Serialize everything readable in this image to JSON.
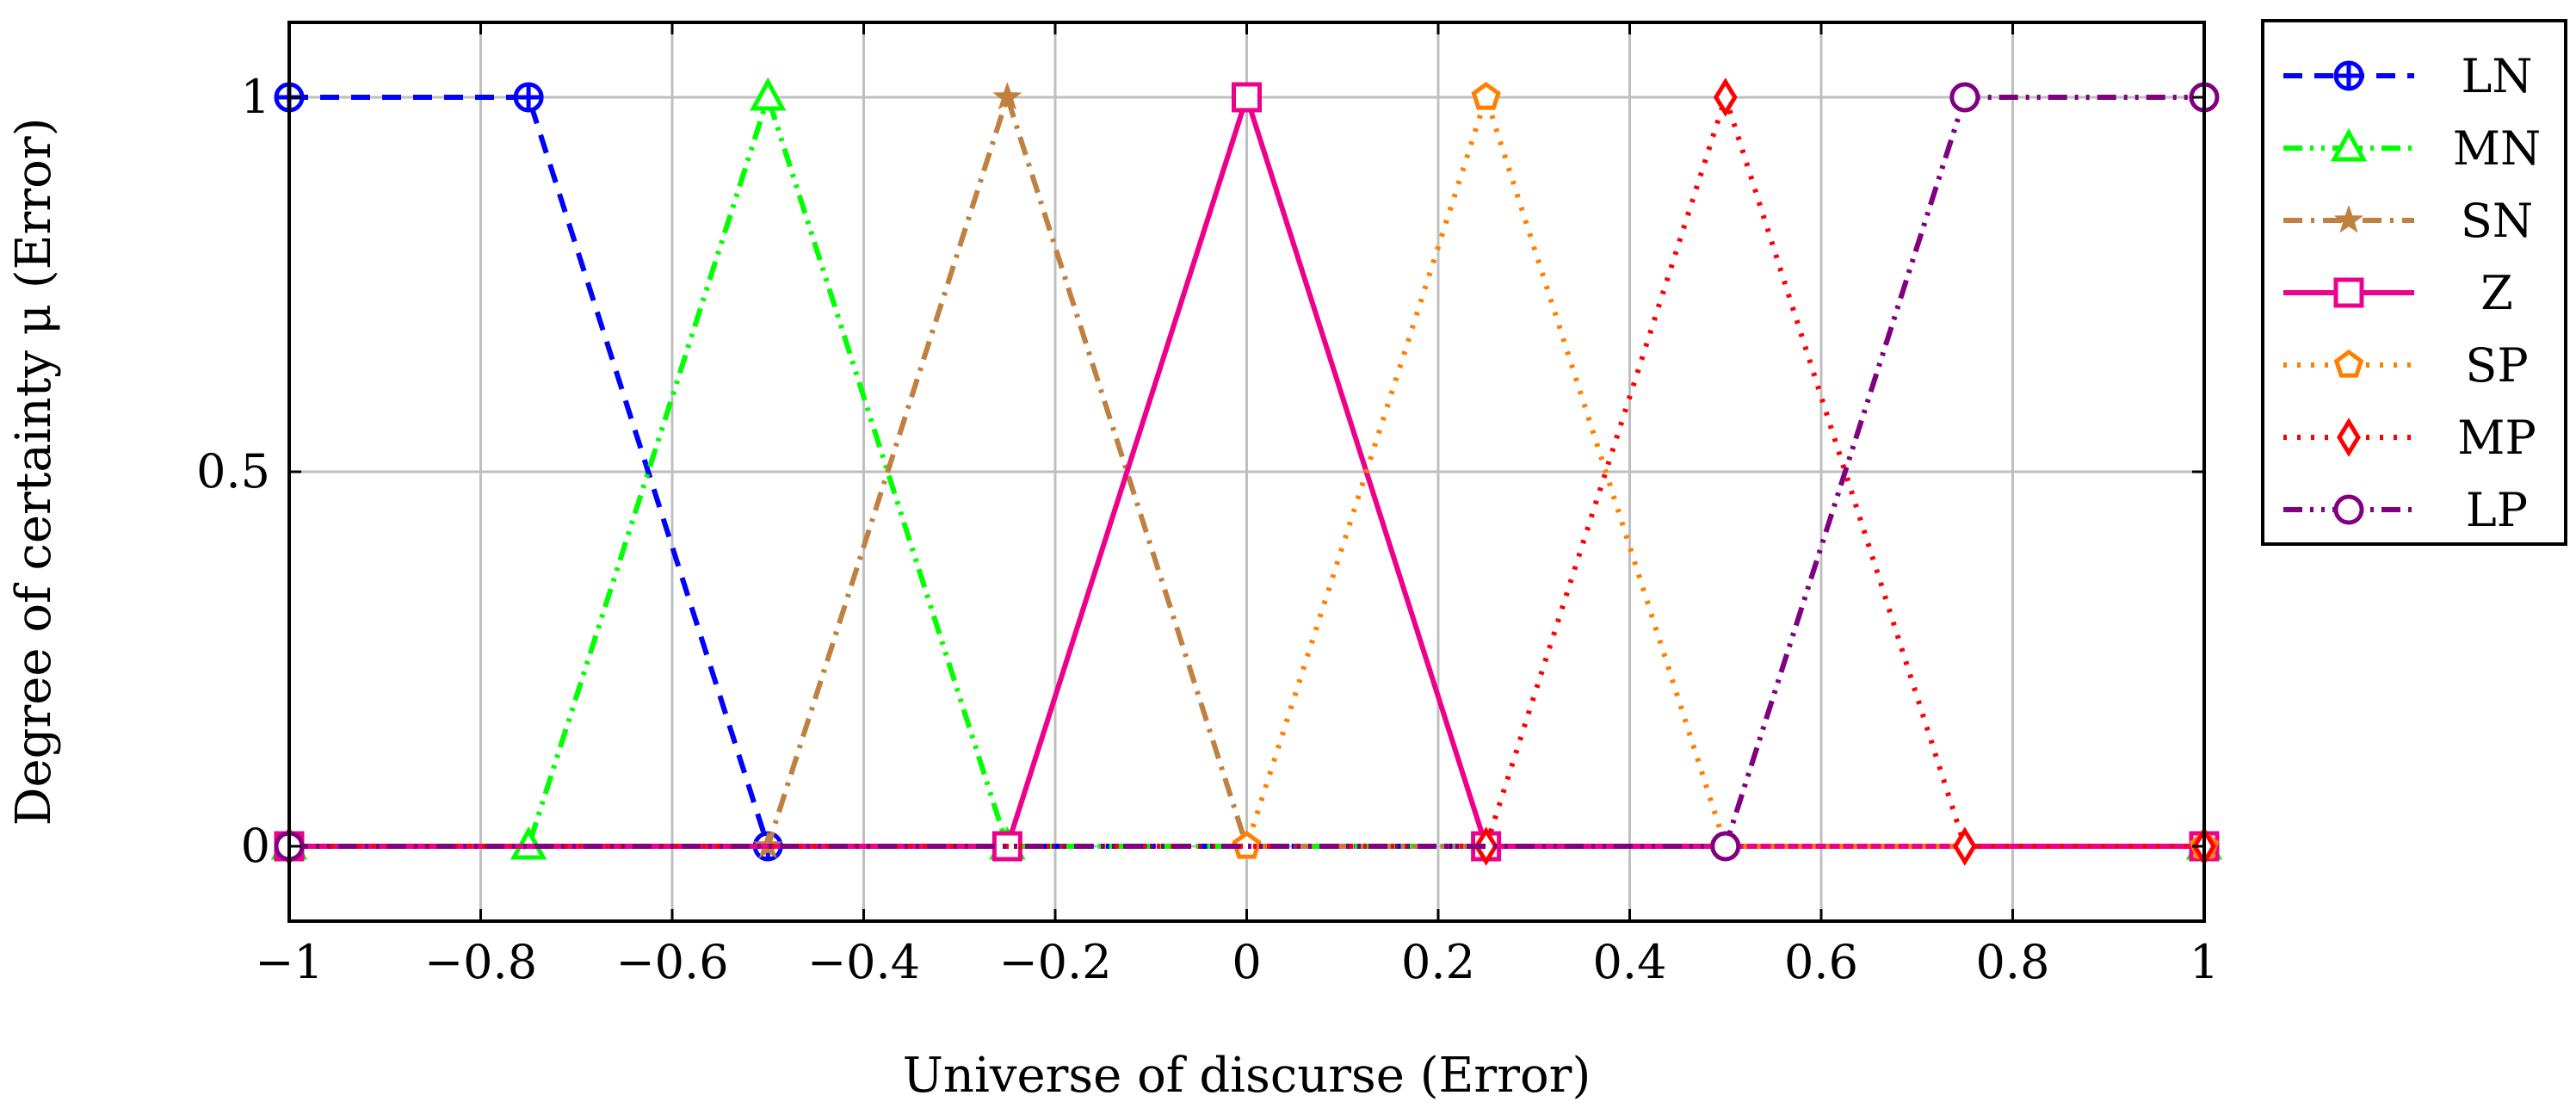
{
  "chart_data": {
    "type": "line",
    "title": "",
    "xlabel": "Universe of discurse (Error)",
    "ylabel": "Degree of certainty μ (Error)",
    "xlim": [
      -1,
      1
    ],
    "ylim": [
      -0.1,
      1.1
    ],
    "xticks": [
      -1,
      -0.8,
      -0.6,
      -0.4,
      -0.2,
      0,
      0.2,
      0.4,
      0.6,
      0.8,
      1
    ],
    "xtick_labels": [
      "−1",
      "−0.8",
      "−0.6",
      "−0.4",
      "−0.2",
      "0",
      "0.2",
      "0.4",
      "0.6",
      "0.8",
      "1"
    ],
    "yticks": [
      0,
      0.5,
      1
    ],
    "ytick_labels": [
      "0",
      "0.5",
      "1"
    ],
    "grid": true,
    "legend_position": "outside-top-right",
    "series": [
      {
        "name": "LN",
        "color": "#0000ff",
        "marker": "circle-plus",
        "linestyle": "dashed",
        "x": [
          -1,
          -0.75,
          -0.5,
          1
        ],
        "y": [
          1,
          1,
          0,
          0
        ]
      },
      {
        "name": "MN",
        "color": "#00ff00",
        "marker": "triangle",
        "linestyle": "dash-dot-dot",
        "x": [
          -1,
          -0.75,
          -0.5,
          -0.25,
          1
        ],
        "y": [
          0,
          0,
          1,
          0,
          0
        ]
      },
      {
        "name": "SN",
        "color": "#bf8040",
        "marker": "star",
        "linestyle": "dash-dot",
        "x": [
          -1,
          -0.5,
          -0.25,
          0,
          1
        ],
        "y": [
          0,
          0,
          1,
          0,
          0
        ]
      },
      {
        "name": "Z",
        "color": "#ec008c",
        "marker": "square",
        "linestyle": "solid",
        "x": [
          -1,
          -0.25,
          0,
          0.25,
          1
        ],
        "y": [
          0,
          0,
          1,
          0,
          0
        ]
      },
      {
        "name": "SP",
        "color": "#ff8000",
        "marker": "pentagon",
        "linestyle": "dotted",
        "x": [
          -1,
          0,
          0.25,
          0.5,
          1
        ],
        "y": [
          0,
          0,
          1,
          0,
          0
        ]
      },
      {
        "name": "MP",
        "color": "#ff0000",
        "marker": "diamond",
        "linestyle": "dotted",
        "x": [
          -1,
          0.25,
          0.5,
          0.75,
          1
        ],
        "y": [
          0,
          0,
          1,
          0,
          0
        ]
      },
      {
        "name": "LP",
        "color": "#800080",
        "marker": "circle",
        "linestyle": "dash-dot-dot",
        "x": [
          -1,
          0.5,
          0.75,
          1
        ],
        "y": [
          0,
          0,
          1,
          1
        ]
      }
    ]
  }
}
